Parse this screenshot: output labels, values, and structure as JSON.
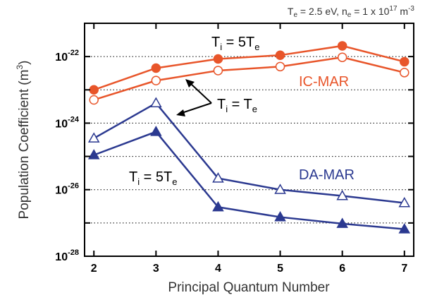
{
  "chart_data": {
    "type": "line",
    "header": {
      "te_prefix": "T",
      "te_sub": "e",
      "te_value": " = 2.5 eV, n",
      "ne_sub": "e",
      "ne_value": " = 1 x 10",
      "ne_exp": "17",
      "ne_unit": " m",
      "ne_unit_exp": "-3"
    },
    "xlabel": "Principal Quantum Number",
    "ylabel": "Population Coefficient (m³)",
    "ylabel_base": "Population Coefficient (m",
    "ylabel_exp": "3",
    "ylabel_close": ")",
    "x": [
      2,
      3,
      4,
      5,
      6,
      7
    ],
    "xlim": [
      1.85,
      7.15
    ],
    "xticks": [
      "2",
      "3",
      "4",
      "5",
      "6",
      "7"
    ],
    "ylim_log10": [
      -28,
      -21
    ],
    "y_scale": "log",
    "yticks": [
      {
        "base": "10",
        "exp": "-22"
      },
      {
        "base": "10",
        "exp": "-24"
      },
      {
        "base": "10",
        "exp": "-26"
      },
      {
        "base": "10",
        "exp": "-28"
      }
    ],
    "grid": "horizontal dotted",
    "series": [
      {
        "group": "IC-MAR",
        "condition": "Ti = 5Te",
        "marker": "filled-circle",
        "color": "#e8552a",
        "values": [
          1e-23,
          4.5e-23,
          8.5e-23,
          1.1e-22,
          2.1e-22,
          7e-23
        ]
      },
      {
        "group": "IC-MAR",
        "condition": "Ti = Te",
        "marker": "open-circle",
        "color": "#e8552a",
        "values": [
          5e-24,
          1.9e-23,
          3.8e-23,
          5e-23,
          9.5e-23,
          3.3e-23
        ]
      },
      {
        "group": "DA-MAR",
        "condition": "Ti = Te",
        "marker": "open-triangle",
        "color": "#2b3990",
        "values": [
          3.5e-25,
          4e-24,
          2.2e-26,
          1e-26,
          6.5e-27,
          4e-27
        ]
      },
      {
        "group": "DA-MAR",
        "condition": "Ti = 5Te",
        "marker": "filled-triangle",
        "color": "#2b3990",
        "values": [
          1.1e-25,
          5.5e-25,
          3e-27,
          1.5e-27,
          9.5e-28,
          6.5e-28
        ]
      }
    ],
    "annotations": {
      "ic_mar": "IC-MAR",
      "da_mar": "DA-MAR",
      "ti_5te_top": {
        "t1": "T",
        "s1": "i",
        "mid": " = 5T",
        "s2": "e"
      },
      "ti_te": {
        "t1": "T",
        "s1": "i",
        "mid": " = T",
        "s2": "e"
      },
      "ti_5te_bottom": {
        "t1": "T",
        "s1": "i",
        "mid": " = 5T",
        "s2": "e"
      }
    }
  }
}
